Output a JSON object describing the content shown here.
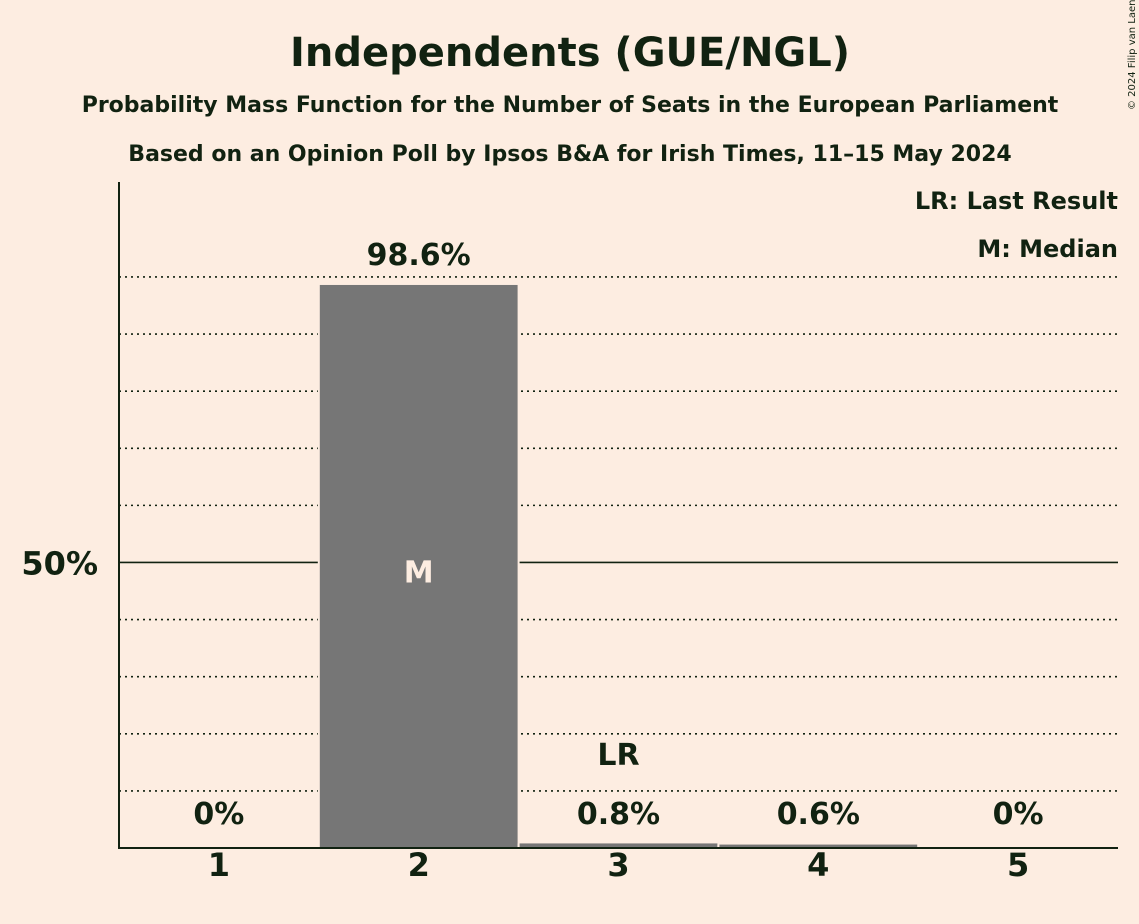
{
  "title": "Independents (GUE/NGL)",
  "subtitle1": "Probability Mass Function for the Number of Seats in the European Parliament",
  "subtitle2": "Based on an Opinion Poll by Ipsos B&A for Irish Times, 11–15 May 2024",
  "copyright": "© 2024 Filip van Laenen",
  "legend": {
    "lr": "LR: Last Result",
    "m": "M: Median"
  },
  "colors": {
    "background": "#fdede1",
    "bar": "#767676",
    "text": "#112211",
    "median_text": "#fdede1"
  },
  "chart_data": {
    "type": "bar",
    "categories": [
      "1",
      "2",
      "3",
      "4",
      "5"
    ],
    "values": [
      0,
      98.6,
      0.8,
      0.6,
      0
    ],
    "value_labels": [
      "0%",
      "98.6%",
      "0.8%",
      "0.6%",
      "0%"
    ],
    "ylim": [
      0,
      107
    ],
    "ytick_major": 50,
    "ytick_label": "50%",
    "gridline_step": 10,
    "median_category": "2",
    "median_marker": "M",
    "last_result_category": "3",
    "last_result_marker": "LR"
  }
}
